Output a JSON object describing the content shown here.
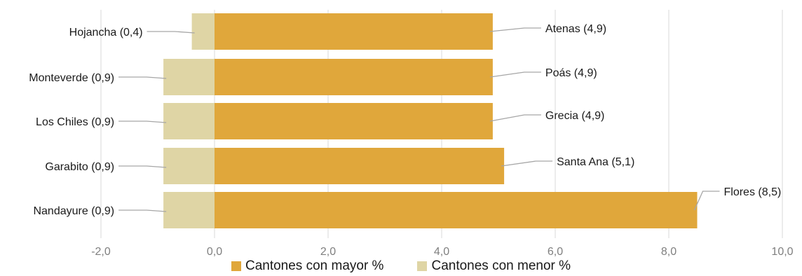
{
  "chart_data": {
    "type": "bar",
    "orientation": "horizontal",
    "stacked": "diverging",
    "xlim": [
      -2,
      10
    ],
    "xticks": [
      "-2,0",
      "0,0",
      "2,0",
      "4,0",
      "6,0",
      "8,0",
      "10,0"
    ],
    "xtick_values": [
      -2,
      0,
      2,
      4,
      6,
      8,
      10
    ],
    "grid": "vertical",
    "legend_position": "bottom",
    "series": [
      {
        "name": "Cantones con mayor %",
        "color": "#e0a73b",
        "categories": [
          "Atenas",
          "Poás",
          "Grecia",
          "Santa Ana",
          "Flores"
        ],
        "values": [
          4.9,
          4.9,
          4.9,
          5.1,
          8.5
        ],
        "labels": [
          "Atenas (4,9)",
          "Poás (4,9)",
          "Grecia (4,9)",
          "Santa Ana (5,1)",
          "Flores (8,5)"
        ]
      },
      {
        "name": "Cantones con menor %",
        "color": "#dfd5a5",
        "categories": [
          "Hojancha",
          "Monteverde",
          "Los Chiles",
          "Garabito",
          "Nandayure"
        ],
        "values": [
          0.4,
          0.9,
          0.9,
          0.9,
          0.9
        ],
        "labels": [
          "Hojancha (0,4)",
          "Monteverde (0,9)",
          "Los Chiles (0,9)",
          "Garabito (0,9)",
          "Nandayure (0,9)"
        ]
      }
    ]
  }
}
